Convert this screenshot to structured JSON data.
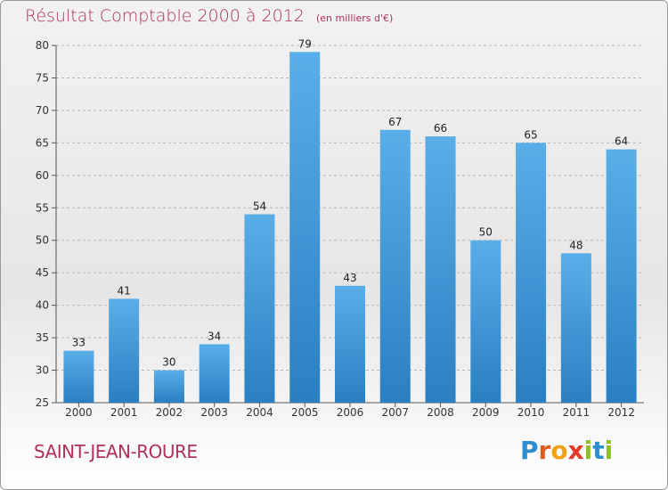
{
  "header": {
    "title": "Résultat Comptable 2000 à 2012",
    "unit": "(en milliers d'€)"
  },
  "footer": {
    "commune": "SAINT-JEAN-ROURE",
    "brand": "Proxiti"
  },
  "colors": {
    "title": "#b0305f",
    "bar_light": "#5aaee8",
    "bar_dark": "#2a7fc2",
    "grid": "#b4b4b4"
  },
  "chart_data": {
    "type": "bar",
    "title": "Résultat Comptable 2000 à 2012",
    "subtitle": "(en milliers d'€)",
    "xlabel": "",
    "ylabel": "",
    "categories": [
      "2000",
      "2001",
      "2002",
      "2003",
      "2004",
      "2005",
      "2006",
      "2007",
      "2008",
      "2009",
      "2010",
      "2011",
      "2012"
    ],
    "values": [
      33,
      41,
      30,
      34,
      54,
      79,
      43,
      67,
      66,
      50,
      65,
      48,
      64
    ],
    "ylim": [
      25,
      80
    ],
    "yticks": [
      25,
      30,
      35,
      40,
      45,
      50,
      55,
      60,
      65,
      70,
      75,
      80
    ],
    "grid": true,
    "legend": "none"
  }
}
